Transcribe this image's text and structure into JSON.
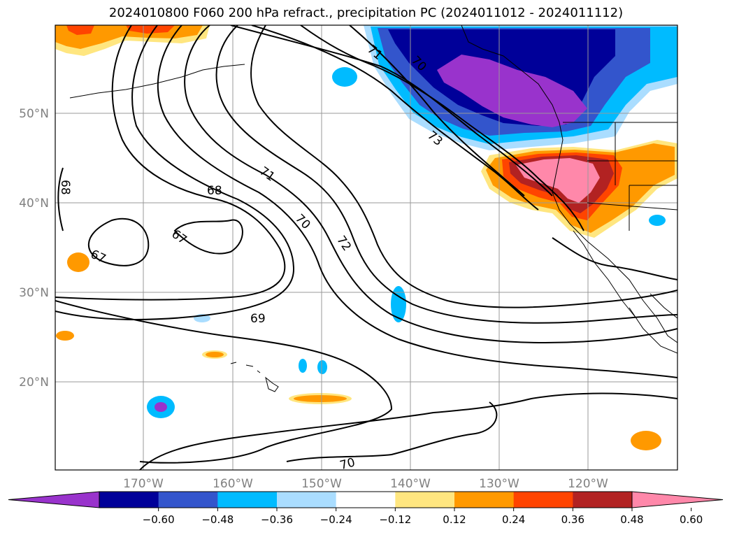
{
  "title": "2024010800 F060 200 hPa refract., precipitation PC (2024011012 - 2024011112)",
  "lat_labels": [
    "50°N",
    "40°N",
    "30°N",
    "20°N"
  ],
  "lon_labels": [
    "170°W",
    "160°W",
    "150°W",
    "140°W",
    "130°W",
    "120°W"
  ],
  "contour_labels": [
    "67",
    "67",
    "68",
    "68",
    "69",
    "70",
    "70",
    "71",
    "71",
    "72",
    "73",
    "70"
  ],
  "colorbar": {
    "colors": [
      "#9933cc",
      "#000099",
      "#3355cc",
      "#00bbff",
      "#aaddff",
      "#ffffff",
      "#ffe680",
      "#ff9900",
      "#ff4400",
      "#b22222",
      "#ff88aa"
    ],
    "tick_labels": [
      "−0.60",
      "−0.48",
      "−0.36",
      "−0.24",
      "−0.12",
      "0.12",
      "0.24",
      "0.36",
      "0.48",
      "0.60"
    ]
  }
}
